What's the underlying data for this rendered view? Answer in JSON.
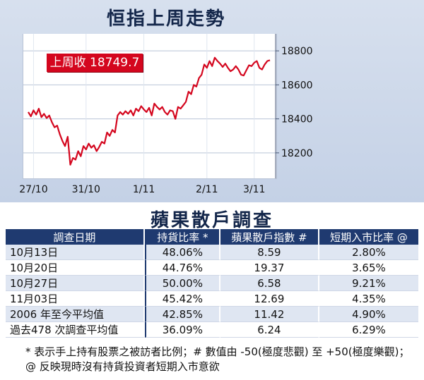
{
  "chart_data": {
    "type": "line",
    "title": "恒指上周走勢",
    "annotation": "上周收 18749.7",
    "x_labels": [
      "27/10",
      "31/10",
      "1/11",
      "2/11",
      "3/11"
    ],
    "y_ticks": [
      18200,
      18400,
      18600,
      18800
    ],
    "ylim": [
      18050,
      18900
    ],
    "grid": true,
    "series": [
      {
        "color": "#d4061e",
        "values": [
          18440,
          18415,
          18450,
          18425,
          18460,
          18410,
          18430,
          18405,
          18420,
          18380,
          18350,
          18360,
          18310,
          18270,
          18240,
          18295,
          18130,
          18170,
          18160,
          18210,
          18180,
          18240,
          18220,
          18255,
          18230,
          18245,
          18210,
          18235,
          18265,
          18255,
          18320,
          18300,
          18335,
          18320,
          18420,
          18440,
          18425,
          18445,
          18430,
          18450,
          18420,
          18460,
          18445,
          18475,
          18455,
          18440,
          18465,
          18420,
          18490,
          18470,
          18455,
          18470,
          18440,
          18425,
          18450,
          18445,
          18400,
          18470,
          18460,
          18480,
          18500,
          18560,
          18545,
          18600,
          18590,
          18640,
          18660,
          18720,
          18700,
          18740,
          18710,
          18760,
          18740,
          18725,
          18705,
          18725,
          18700,
          18680,
          18690,
          18710,
          18690,
          18660,
          18655,
          18685,
          18715,
          18710,
          18730,
          18740,
          18700,
          18690,
          18720,
          18740,
          18745
        ]
      }
    ]
  },
  "survey": {
    "title": "蘋果散戶調查",
    "headers": [
      "調查日期",
      "持貨比率 *",
      "蘋果散戶指數 #",
      "短期入市比率 @"
    ],
    "rows": [
      [
        "10月13日",
        "48.06%",
        "8.59",
        "2.80%"
      ],
      [
        "10月20日",
        "44.76%",
        "19.37",
        "3.65%"
      ],
      [
        "10月27日",
        "50.00%",
        "6.58",
        "9.21%"
      ],
      [
        "11月03日",
        "45.42%",
        "12.69",
        "4.35%"
      ],
      [
        "2006 年至今平均值",
        "42.85%",
        "11.42",
        "4.90%"
      ],
      [
        "過去478 次調查平均值",
        "36.09%",
        "6.24",
        "6.29%"
      ]
    ],
    "footnote": "* 表示手上持有股票之被訪者比例；# 數值由 -50(極度悲觀) 至 +50(極度樂觀)；@ 反映現時沒有持貨投資者短期入市意欲"
  }
}
